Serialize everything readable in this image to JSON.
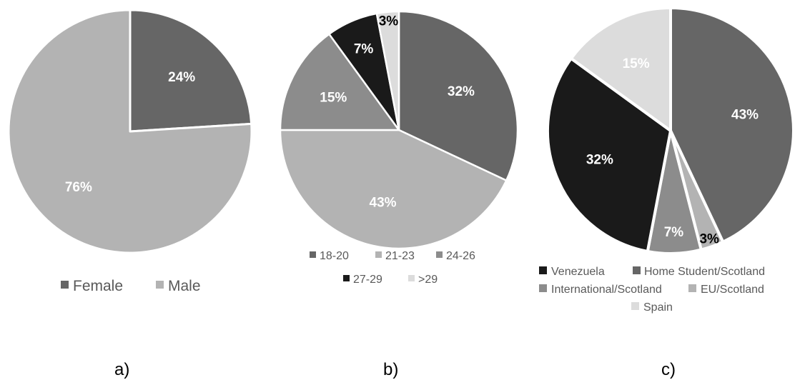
{
  "chart_data": [
    {
      "type": "pie",
      "panel_label": "a)",
      "slices": [
        {
          "name": "Female",
          "value": 24,
          "label": "24%",
          "color": "#666666",
          "label_color": "#ffffff"
        },
        {
          "name": "Male",
          "value": 76,
          "label": "76%",
          "color": "#b3b3b3",
          "label_color": "#ffffff"
        }
      ],
      "legend": [
        "Female",
        "Male"
      ]
    },
    {
      "type": "pie",
      "panel_label": "b)",
      "slices": [
        {
          "name": "18-20",
          "value": 32,
          "label": "32%",
          "color": "#666666",
          "label_color": "#ffffff"
        },
        {
          "name": "21-23",
          "value": 43,
          "label": "43%",
          "color": "#b3b3b3",
          "label_color": "#ffffff"
        },
        {
          "name": "24-26",
          "value": 15,
          "label": "15%",
          "color": "#8c8c8c",
          "label_color": "#ffffff"
        },
        {
          "name": "27-29",
          "value": 7,
          "label": "7%",
          "color": "#1a1a1a",
          "label_color": "#ffffff"
        },
        {
          "name": ">29",
          "value": 3,
          "label": "3%",
          "color": "#dcdcdc",
          "label_color": "#000000"
        }
      ],
      "legend": [
        "18-20",
        "21-23",
        "24-26",
        "27-29",
        ">29"
      ]
    },
    {
      "type": "pie",
      "panel_label": "c)",
      "slices": [
        {
          "name": "Home Student/Scotland",
          "value": 43,
          "label": "43%",
          "color": "#666666",
          "label_color": "#ffffff"
        },
        {
          "name": "EU/Scotland",
          "value": 3,
          "label": "3%",
          "color": "#b3b3b3",
          "label_color": "#000000"
        },
        {
          "name": "International/Scotland",
          "value": 7,
          "label": "7%",
          "color": "#8c8c8c",
          "label_color": "#ffffff"
        },
        {
          "name": "Venezuela",
          "value": 32,
          "label": "32%",
          "color": "#1a1a1a",
          "label_color": "#ffffff"
        },
        {
          "name": "Spain",
          "value": 15,
          "label": "15%",
          "color": "#dcdcdc",
          "label_color": "#ffffff"
        }
      ],
      "legend": [
        "Venezuela",
        "Home Student/Scotland",
        "International/Scotland",
        "EU/Scotland",
        "Spain"
      ]
    }
  ]
}
